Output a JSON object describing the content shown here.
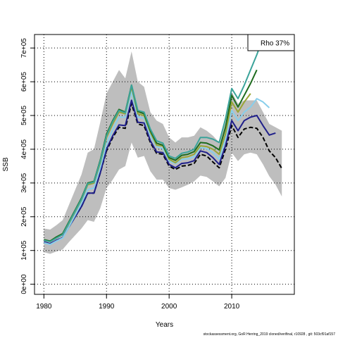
{
  "chart_data": {
    "type": "line",
    "title": "",
    "xlabel": "Years",
    "ylabel": "SSB",
    "xlim": [
      1978.5,
      2020
    ],
    "ylim": [
      -30000,
      740000
    ],
    "x_ticks": [
      1980,
      1990,
      2000,
      2010
    ],
    "y_ticks": [
      0,
      100000,
      200000,
      300000,
      400000,
      500000,
      600000,
      700000
    ],
    "y_tick_labels": [
      "0e+00",
      "1e+05",
      "2e+05",
      "3e+05",
      "4e+05",
      "5e+05",
      "6e+05",
      "7e+05"
    ],
    "grid": true,
    "legend_text": "Rho 37%",
    "legend_placement": "top-right",
    "confidence_band": {
      "color": "#bebebe",
      "x": [
        1980,
        1981,
        1982,
        1983,
        1984,
        1985,
        1986,
        1987,
        1988,
        1989,
        1990,
        1991,
        1992,
        1993,
        1994,
        1995,
        1996,
        1997,
        1998,
        1999,
        2000,
        2001,
        2002,
        2003,
        2004,
        2005,
        2006,
        2007,
        2008,
        2009,
        2010,
        2011,
        2012,
        2013,
        2014,
        2015,
        2016,
        2017,
        2018
      ],
      "upper": [
        165000,
        162000,
        175000,
        190000,
        235000,
        280000,
        325000,
        390000,
        400000,
        480000,
        565000,
        600000,
        635000,
        610000,
        690000,
        600000,
        585000,
        510000,
        485000,
        475000,
        435000,
        420000,
        435000,
        435000,
        440000,
        465000,
        455000,
        440000,
        420000,
        480000,
        570000,
        535000,
        545000,
        545000,
        545000,
        510000,
        475000,
        465000,
        455000
      ],
      "lower": [
        95000,
        90000,
        97000,
        103000,
        125000,
        145000,
        165000,
        190000,
        185000,
        225000,
        285000,
        310000,
        340000,
        350000,
        420000,
        375000,
        380000,
        335000,
        310000,
        310000,
        285000,
        280000,
        287000,
        295000,
        305000,
        322000,
        318000,
        305000,
        290000,
        315000,
        390000,
        365000,
        385000,
        390000,
        385000,
        355000,
        320000,
        295000,
        260000
      ]
    },
    "series": [
      {
        "color": "#000000",
        "dash": true,
        "x": [
          1980,
          1981,
          1982,
          1983,
          1984,
          1985,
          1986,
          1987,
          1988,
          1989,
          1990,
          1991,
          1992,
          1993,
          1994,
          1995,
          1996,
          1997,
          1998,
          1999,
          2000,
          2001,
          2002,
          2003,
          2004,
          2005,
          2006,
          2007,
          2008,
          2009,
          2010,
          2011,
          2012,
          2013,
          2014,
          2015,
          2016,
          2017,
          2018
        ],
        "values": [
          125000,
          120000,
          130000,
          138000,
          170000,
          200000,
          230000,
          270000,
          270000,
          330000,
          395000,
          435000,
          465000,
          462000,
          535000,
          475000,
          470000,
          420000,
          388000,
          385000,
          350000,
          340000,
          350000,
          352000,
          358000,
          385000,
          380000,
          362000,
          345000,
          400000,
          470000,
          435000,
          460000,
          465000,
          462000,
          435000,
          395000,
          375000,
          343000
        ]
      },
      {
        "color": "#1f1f8a",
        "dash": false,
        "x": [
          1980,
          1981,
          1982,
          1983,
          1984,
          1985,
          1986,
          1987,
          1988,
          1989,
          1990,
          1991,
          1992,
          1993,
          1994,
          1995,
          1996,
          1997,
          1998,
          1999,
          2000,
          2001,
          2002,
          2003,
          2004,
          2005,
          2006,
          2007,
          2008,
          2009,
          2010,
          2011,
          2012,
          2013,
          2014,
          2015,
          2016,
          2017
        ],
        "values": [
          125000,
          120000,
          130000,
          138000,
          170000,
          200000,
          230000,
          270000,
          270000,
          330000,
          400000,
          440000,
          472000,
          470000,
          545000,
          480000,
          478000,
          425000,
          392000,
          390000,
          355000,
          345000,
          358000,
          360000,
          366000,
          395000,
          390000,
          375000,
          355000,
          410000,
          485000,
          455000,
          485000,
          495000,
          500000,
          470000,
          442000,
          448000
        ]
      },
      {
        "color": "#87ceeb",
        "dash": false,
        "x": [
          1980,
          1981,
          1982,
          1983,
          1984,
          1985,
          1986,
          1987,
          1988,
          1989,
          1990,
          1991,
          1992,
          1993,
          1994,
          1995,
          1996,
          1997,
          1998,
          1999,
          2000,
          2001,
          2002,
          2003,
          2004,
          2005,
          2006,
          2007,
          2008,
          2009,
          2010,
          2011,
          2012,
          2013,
          2014,
          2015,
          2016
        ],
        "values": [
          123000,
          118000,
          128000,
          137000,
          170000,
          205000,
          240000,
          280000,
          285000,
          345000,
          415000,
          458000,
          495000,
          495000,
          570000,
          495000,
          492000,
          440000,
          408000,
          402000,
          365000,
          358000,
          370000,
          372000,
          378000,
          405000,
          402000,
          390000,
          370000,
          430000,
          515000,
          485000,
          510000,
          525000,
          550000,
          540000,
          523000
        ]
      },
      {
        "color": "#9aa536",
        "dash": false,
        "x": [
          1980,
          1981,
          1982,
          1983,
          1984,
          1985,
          1986,
          1987,
          1988,
          1989,
          1990,
          1991,
          1992,
          1993,
          1994,
          1995,
          1996,
          1997,
          1998,
          1999,
          2000,
          2001,
          2002,
          2003,
          2004,
          2005,
          2006,
          2007,
          2008,
          2009,
          2010,
          2011,
          2012,
          2013
        ],
        "values": [
          131000,
          127000,
          138000,
          148000,
          180000,
          215000,
          250000,
          295000,
          300000,
          360000,
          435000,
          475000,
          510000,
          505000,
          585000,
          505000,
          500000,
          450000,
          412000,
          410000,
          370000,
          360000,
          375000,
          378000,
          385000,
          410000,
          408000,
          400000,
          385000,
          445000,
          540000,
          510000,
          540000,
          565000
        ]
      },
      {
        "color": "#1e6b1e",
        "dash": false,
        "x": [
          1980,
          1981,
          1982,
          1983,
          1984,
          1985,
          1986,
          1987,
          1988,
          1989,
          1990,
          1991,
          1992,
          1993,
          1994,
          1995,
          1996,
          1997,
          1998,
          1999,
          2000,
          2001,
          2002,
          2003,
          2004,
          2005,
          2006,
          2007,
          2008,
          2009,
          2010,
          2011,
          2012,
          2013,
          2014
        ],
        "values": [
          132000,
          128000,
          140000,
          150000,
          185000,
          220000,
          255000,
          300000,
          305000,
          368000,
          445000,
          485000,
          518000,
          510000,
          590000,
          512000,
          505000,
          455000,
          418000,
          412000,
          375000,
          367000,
          382000,
          385000,
          393000,
          420000,
          418000,
          410000,
          398000,
          465000,
          560000,
          525000,
          560000,
          595000,
          635000
        ]
      },
      {
        "color": "#3aa39a",
        "dash": false,
        "x": [
          1980,
          1981,
          1982,
          1983,
          1984,
          1985,
          1986,
          1987,
          1988,
          1989,
          1990,
          1991,
          1992,
          1993,
          1994,
          1995,
          1996,
          1997,
          1998,
          1999,
          2000,
          2001,
          2002,
          2003,
          2004,
          2005,
          2006,
          2007,
          2008,
          2009,
          2010,
          2011,
          2012,
          2013,
          2014,
          2015
        ],
        "values": [
          130000,
          126000,
          137000,
          147000,
          182000,
          217000,
          252000,
          298000,
          303000,
          365000,
          440000,
          482000,
          515000,
          508000,
          590000,
          515000,
          510000,
          460000,
          425000,
          418000,
          380000,
          373000,
          388000,
          392000,
          400000,
          435000,
          435000,
          430000,
          420000,
          490000,
          580000,
          550000,
          590000,
          635000,
          680000,
          730000
        ]
      }
    ]
  },
  "footer_text": "stockassessment.org,  GoR Herring_2019  cloned/verifinal,  r10928 ,  git:  503cf91af157"
}
